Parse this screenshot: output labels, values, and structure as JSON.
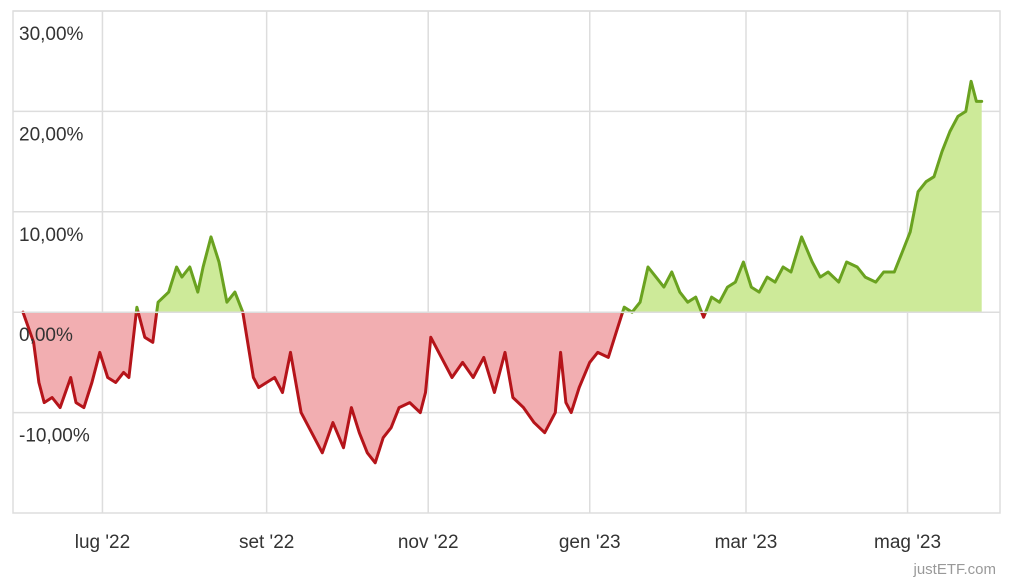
{
  "chart_data": {
    "type": "area",
    "x_start": "2022-06-01",
    "x_end": "2023-05-31",
    "ylim": [
      -20,
      30
    ],
    "y_ticks": [
      30,
      20,
      10,
      0,
      -10
    ],
    "y_tick_labels": [
      "30,00%",
      "20,00%",
      "10,00%",
      "0,00%",
      "-10,00%"
    ],
    "x_ticks": [
      "2022-07-01",
      "2022-09-01",
      "2022-11-01",
      "2023-01-01",
      "2023-03-01",
      "2023-05-01"
    ],
    "x_tick_labels": [
      "lug '22",
      "set '22",
      "nov '22",
      "gen '23",
      "mar '23",
      "mag '23"
    ],
    "grid": true,
    "colors": {
      "positive_line": "#6aa220",
      "positive_fill": "#cdea99",
      "negative_line": "#b5141a",
      "negative_fill": "#f2aeb1",
      "grid": "#dddddd"
    },
    "series": [
      {
        "x": [
          "2022-06-01",
          "2022-06-05",
          "2022-06-07",
          "2022-06-09",
          "2022-06-12",
          "2022-06-15",
          "2022-06-19",
          "2022-06-21",
          "2022-06-24",
          "2022-06-27",
          "2022-06-30",
          "2022-07-03",
          "2022-07-06",
          "2022-07-09",
          "2022-07-11",
          "2022-07-14",
          "2022-07-17",
          "2022-07-20",
          "2022-07-22",
          "2022-07-26",
          "2022-07-29",
          "2022-07-31",
          "2022-08-03",
          "2022-08-06",
          "2022-08-08",
          "2022-08-11",
          "2022-08-14",
          "2022-08-17",
          "2022-08-20",
          "2022-08-23",
          "2022-08-27",
          "2022-08-29",
          "2022-09-01",
          "2022-09-04",
          "2022-09-07",
          "2022-09-10",
          "2022-09-14",
          "2022-09-18",
          "2022-09-22",
          "2022-09-26",
          "2022-09-30",
          "2022-10-03",
          "2022-10-06",
          "2022-10-09",
          "2022-10-12",
          "2022-10-15",
          "2022-10-18",
          "2022-10-21",
          "2022-10-25",
          "2022-10-29",
          "2022-10-31",
          "2022-11-02",
          "2022-11-06",
          "2022-11-10",
          "2022-11-14",
          "2022-11-18",
          "2022-11-22",
          "2022-11-26",
          "2022-11-30",
          "2022-12-03",
          "2022-12-07",
          "2022-12-11",
          "2022-12-15",
          "2022-12-19",
          "2022-12-21",
          "2022-12-23",
          "2022-12-25",
          "2022-12-28",
          "2023-01-01",
          "2023-01-04",
          "2023-01-08",
          "2023-01-11",
          "2023-01-14",
          "2023-01-17",
          "2023-01-20",
          "2023-01-23",
          "2023-01-26",
          "2023-01-29",
          "2023-02-01",
          "2023-02-04",
          "2023-02-07",
          "2023-02-10",
          "2023-02-13",
          "2023-02-16",
          "2023-02-19",
          "2023-02-22",
          "2023-02-25",
          "2023-02-28",
          "2023-03-03",
          "2023-03-06",
          "2023-03-09",
          "2023-03-12",
          "2023-03-15",
          "2023-03-18",
          "2023-03-22",
          "2023-03-26",
          "2023-03-29",
          "2023-04-01",
          "2023-04-05",
          "2023-04-08",
          "2023-04-12",
          "2023-04-15",
          "2023-04-19",
          "2023-04-22",
          "2023-04-26",
          "2023-04-29",
          "2023-05-02",
          "2023-05-05",
          "2023-05-08",
          "2023-05-11",
          "2023-05-14",
          "2023-05-17",
          "2023-05-20",
          "2023-05-23",
          "2023-05-25",
          "2023-05-27",
          "2023-05-29"
        ],
        "y": [
          0.0,
          -3.0,
          -7.0,
          -9.0,
          -8.5,
          -9.5,
          -6.5,
          -9.0,
          -9.5,
          -7.0,
          -4.0,
          -6.5,
          -7.0,
          -6.0,
          -6.5,
          0.5,
          -2.5,
          -3.0,
          1.0,
          2.0,
          4.5,
          3.5,
          4.5,
          2.0,
          4.5,
          7.5,
          5.0,
          1.0,
          2.0,
          0.0,
          -6.5,
          -7.5,
          -7.0,
          -6.5,
          -8.0,
          -4.0,
          -10.0,
          -12.0,
          -14.0,
          -11.0,
          -13.5,
          -9.5,
          -12.0,
          -14.0,
          -15.0,
          -12.5,
          -11.5,
          -9.5,
          -9.0,
          -10.0,
          -8.0,
          -2.5,
          -4.5,
          -6.5,
          -5.0,
          -6.5,
          -4.5,
          -8.0,
          -4.0,
          -8.5,
          -9.5,
          -11.0,
          -12.0,
          -10.0,
          -4.0,
          -9.0,
          -10.0,
          -7.5,
          -5.0,
          -4.0,
          -4.5,
          -2.0,
          0.5,
          0.0,
          1.0,
          4.5,
          3.5,
          2.5,
          4.0,
          2.0,
          1.0,
          1.5,
          -0.5,
          1.5,
          1.0,
          2.5,
          3.0,
          5.0,
          2.5,
          2.0,
          3.5,
          3.0,
          4.5,
          4.0,
          7.5,
          5.0,
          3.5,
          4.0,
          3.0,
          5.0,
          4.5,
          3.5,
          3.0,
          4.0,
          4.0,
          6.0,
          8.0,
          12.0,
          13.0,
          13.5,
          16.0,
          18.0,
          19.5,
          20.0,
          23.0,
          21.0,
          21.0
        ]
      }
    ]
  },
  "credit": "justETF.com"
}
